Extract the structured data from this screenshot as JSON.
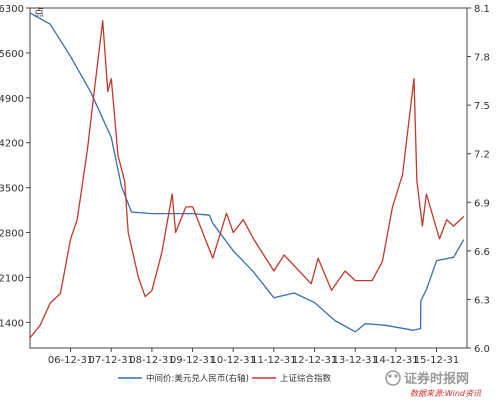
{
  "chart_data": {
    "type": "line",
    "title": "",
    "xlabel": "",
    "ylabel_left": "点",
    "x_ticks": [
      "06-12-31",
      "07-12-31",
      "08-12-31",
      "09-12-31",
      "10-12-31",
      "11-12-31",
      "12-12-31",
      "13-12-31",
      "14-12-31",
      "15-12-31"
    ],
    "x_range": [
      "2006-01-01",
      "2016-09-30"
    ],
    "y_left": {
      "ticks": [
        "1400",
        "2100",
        "2800",
        "3500",
        "4200",
        "4900",
        "5600",
        "6300"
      ],
      "range": [
        1000,
        6300
      ]
    },
    "y_right": {
      "ticks": [
        "6.0",
        "6.3",
        "6.6",
        "6.9",
        "7.2",
        "7.5",
        "7.8",
        "8.1"
      ],
      "range": [
        6.0,
        8.1
      ]
    },
    "grid": false,
    "legend_position": "bottom",
    "series": [
      {
        "name": "中间价:美元兑人民币(右轴)",
        "axis": "right",
        "color": "#3a6fb0",
        "points": [
          [
            "2006-01-01",
            8.07
          ],
          [
            "2006-07-01",
            8.0
          ],
          [
            "2007-01-01",
            7.8
          ],
          [
            "2007-07-01",
            7.58
          ],
          [
            "2008-01-01",
            7.3
          ],
          [
            "2008-04-01",
            7.0
          ],
          [
            "2008-07-01",
            6.84
          ],
          [
            "2009-01-01",
            6.83
          ],
          [
            "2009-07-01",
            6.83
          ],
          [
            "2010-01-01",
            6.83
          ],
          [
            "2010-06-01",
            6.82
          ],
          [
            "2010-07-01",
            6.77
          ],
          [
            "2011-01-01",
            6.6
          ],
          [
            "2011-07-01",
            6.47
          ],
          [
            "2012-01-01",
            6.31
          ],
          [
            "2012-07-01",
            6.34
          ],
          [
            "2013-01-01",
            6.28
          ],
          [
            "2013-07-01",
            6.17
          ],
          [
            "2014-01-01",
            6.1
          ],
          [
            "2014-04-01",
            6.15
          ],
          [
            "2014-10-01",
            6.14
          ],
          [
            "2015-06-01",
            6.11
          ],
          [
            "2015-08-10",
            6.12
          ],
          [
            "2015-08-12",
            6.29
          ],
          [
            "2015-10-01",
            6.36
          ],
          [
            "2016-01-01",
            6.54
          ],
          [
            "2016-06-01",
            6.56
          ],
          [
            "2016-09-01",
            6.67
          ]
        ]
      },
      {
        "name": "上证综合指数",
        "axis": "left",
        "color": "#c0392b",
        "points": [
          [
            "2006-01-01",
            1160
          ],
          [
            "2006-04-01",
            1350
          ],
          [
            "2006-07-01",
            1700
          ],
          [
            "2006-10-01",
            1850
          ],
          [
            "2007-01-01",
            2700
          ],
          [
            "2007-03-01",
            3000
          ],
          [
            "2007-06-01",
            4100
          ],
          [
            "2007-08-01",
            5000
          ],
          [
            "2007-10-16",
            6100
          ],
          [
            "2007-12-01",
            5000
          ],
          [
            "2008-01-01",
            5200
          ],
          [
            "2008-03-01",
            4000
          ],
          [
            "2008-05-01",
            3600
          ],
          [
            "2008-06-01",
            2800
          ],
          [
            "2008-09-01",
            2100
          ],
          [
            "2008-11-01",
            1800
          ],
          [
            "2009-01-01",
            1900
          ],
          [
            "2009-04-01",
            2500
          ],
          [
            "2009-07-01",
            3400
          ],
          [
            "2009-08-01",
            2800
          ],
          [
            "2009-11-01",
            3200
          ],
          [
            "2010-01-01",
            3200
          ],
          [
            "2010-07-01",
            2400
          ],
          [
            "2010-11-01",
            3100
          ],
          [
            "2011-01-01",
            2800
          ],
          [
            "2011-04-01",
            3000
          ],
          [
            "2011-07-01",
            2700
          ],
          [
            "2012-01-01",
            2200
          ],
          [
            "2012-04-01",
            2450
          ],
          [
            "2012-12-01",
            2000
          ],
          [
            "2013-02-01",
            2400
          ],
          [
            "2013-06-01",
            1900
          ],
          [
            "2013-10-01",
            2200
          ],
          [
            "2014-01-01",
            2050
          ],
          [
            "2014-06-01",
            2050
          ],
          [
            "2014-09-01",
            2350
          ],
          [
            "2014-12-01",
            3200
          ],
          [
            "2015-03-01",
            3700
          ],
          [
            "2015-06-12",
            5200
          ],
          [
            "2015-07-08",
            3600
          ],
          [
            "2015-08-26",
            2900
          ],
          [
            "2015-10-01",
            3400
          ],
          [
            "2016-01-27",
            2700
          ],
          [
            "2016-04-01",
            3000
          ],
          [
            "2016-06-01",
            2900
          ],
          [
            "2016-09-01",
            3050
          ]
        ]
      }
    ]
  },
  "watermark": {
    "brand": "证券时报网",
    "source": "数据来源:Wind资讯"
  }
}
